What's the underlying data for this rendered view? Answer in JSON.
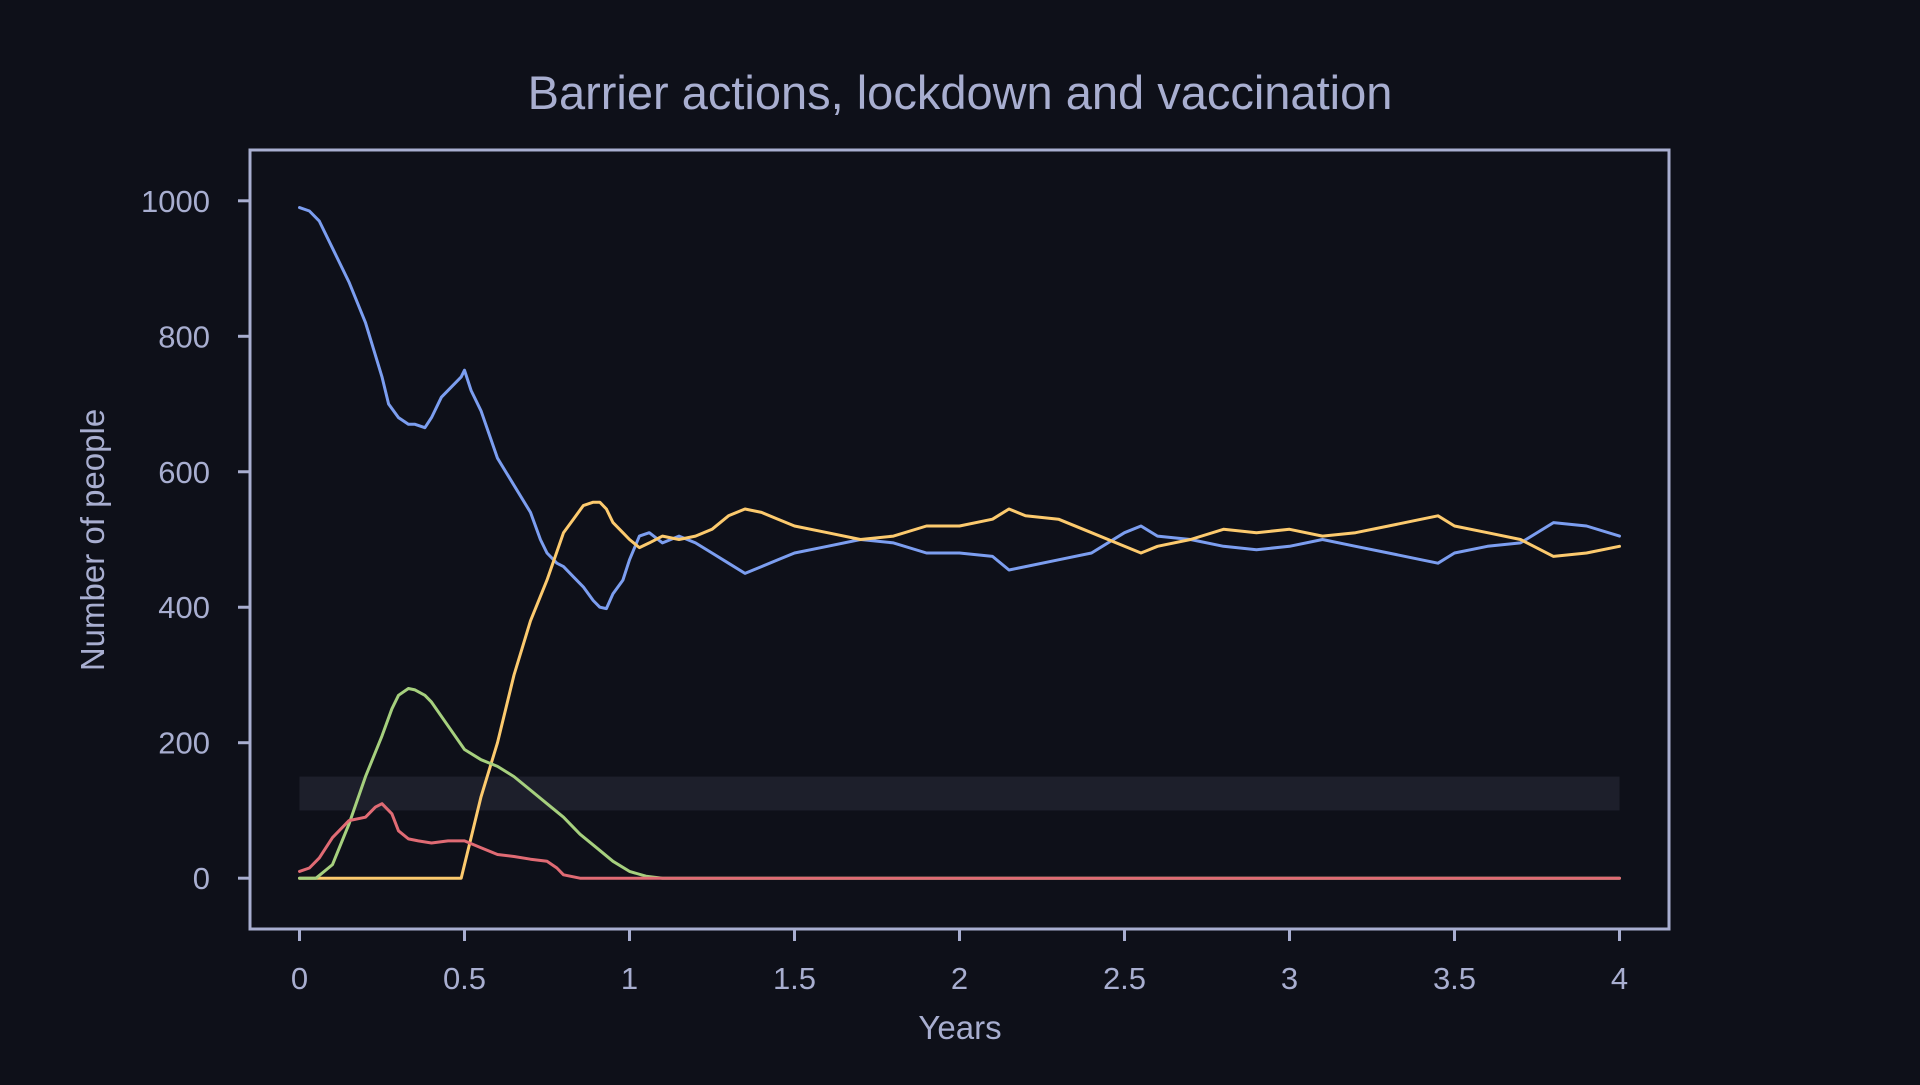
{
  "chart_data": {
    "type": "line",
    "title": "Barrier actions, lockdown and vaccination",
    "xlabel": "Years",
    "ylabel": "Number of people",
    "xlim": [
      -0.15,
      4.15
    ],
    "ylim": [
      -75,
      1075
    ],
    "x_ticks": [
      0,
      0.5,
      1,
      1.5,
      2,
      2.5,
      3,
      3.5,
      4
    ],
    "x_tick_labels": [
      "0",
      "0.5",
      "1",
      "1.5",
      "2",
      "2.5",
      "3",
      "3.5",
      "4"
    ],
    "y_ticks": [
      0,
      200,
      400,
      600,
      800,
      1000
    ],
    "y_tick_labels": [
      "0",
      "200",
      "400",
      "600",
      "800",
      "1000"
    ],
    "grid": false,
    "legend": "none",
    "colors": {
      "background": "#0e1019",
      "axes": "#a8aed0",
      "legend_box": "#1d1f2b"
    },
    "series": [
      {
        "color": "#7c9ef0",
        "x": [
          0,
          0.03,
          0.06,
          0.1,
          0.15,
          0.2,
          0.25,
          0.27,
          0.3,
          0.33,
          0.35,
          0.38,
          0.4,
          0.43,
          0.46,
          0.49,
          0.5,
          0.52,
          0.55,
          0.6,
          0.65,
          0.7,
          0.73,
          0.75,
          0.78,
          0.8,
          0.83,
          0.86,
          0.89,
          0.91,
          0.93,
          0.95,
          0.98,
          1.0,
          1.03,
          1.06,
          1.1,
          1.15,
          1.2,
          1.25,
          1.3,
          1.35,
          1.4,
          1.45,
          1.5,
          1.6,
          1.7,
          1.8,
          1.9,
          2.0,
          2.1,
          2.15,
          2.2,
          2.3,
          2.4,
          2.5,
          2.55,
          2.6,
          2.7,
          2.8,
          2.9,
          3.0,
          3.1,
          3.2,
          3.3,
          3.4,
          3.45,
          3.5,
          3.6,
          3.7,
          3.8,
          3.9,
          4.0
        ],
        "y": [
          990,
          985,
          970,
          930,
          880,
          820,
          740,
          700,
          680,
          670,
          670,
          665,
          680,
          710,
          725,
          740,
          750,
          720,
          690,
          620,
          580,
          540,
          500,
          480,
          465,
          460,
          445,
          430,
          410,
          400,
          398,
          420,
          440,
          470,
          505,
          510,
          495,
          505,
          495,
          480,
          465,
          450,
          460,
          470,
          480,
          490,
          500,
          495,
          480,
          480,
          475,
          455,
          460,
          470,
          480,
          510,
          520,
          505,
          500,
          490,
          485,
          490,
          500,
          490,
          480,
          470,
          465,
          480,
          490,
          495,
          525,
          520,
          505
        ]
      },
      {
        "color": "#fcca6e",
        "x": [
          0,
          0.1,
          0.2,
          0.3,
          0.4,
          0.49,
          0.5,
          0.52,
          0.55,
          0.6,
          0.65,
          0.7,
          0.75,
          0.8,
          0.83,
          0.86,
          0.89,
          0.91,
          0.93,
          0.95,
          0.98,
          1.0,
          1.03,
          1.06,
          1.1,
          1.15,
          1.2,
          1.25,
          1.3,
          1.35,
          1.4,
          1.45,
          1.5,
          1.6,
          1.7,
          1.8,
          1.9,
          2.0,
          2.1,
          2.15,
          2.2,
          2.3,
          2.4,
          2.5,
          2.55,
          2.6,
          2.7,
          2.8,
          2.9,
          3.0,
          3.1,
          3.2,
          3.3,
          3.4,
          3.45,
          3.5,
          3.6,
          3.7,
          3.8,
          3.9,
          4.0
        ],
        "y": [
          0,
          0,
          0,
          0,
          0,
          0,
          20,
          60,
          120,
          200,
          300,
          380,
          440,
          510,
          530,
          550,
          555,
          555,
          545,
          525,
          510,
          500,
          488,
          495,
          505,
          500,
          505,
          515,
          535,
          545,
          540,
          530,
          520,
          510,
          500,
          505,
          520,
          520,
          530,
          545,
          535,
          530,
          510,
          490,
          480,
          490,
          500,
          515,
          510,
          515,
          505,
          510,
          520,
          530,
          535,
          520,
          510,
          500,
          475,
          480,
          490
        ]
      },
      {
        "color": "#a6d07e",
        "x": [
          0,
          0.05,
          0.1,
          0.15,
          0.2,
          0.25,
          0.28,
          0.3,
          0.33,
          0.35,
          0.38,
          0.4,
          0.45,
          0.5,
          0.55,
          0.6,
          0.65,
          0.7,
          0.75,
          0.8,
          0.85,
          0.9,
          0.95,
          1.0,
          1.05,
          1.1,
          1.2,
          1.5,
          2.0,
          2.5,
          3.0,
          3.5,
          4.0
        ],
        "y": [
          0,
          0,
          20,
          80,
          150,
          210,
          250,
          270,
          280,
          278,
          270,
          260,
          225,
          190,
          175,
          165,
          150,
          130,
          110,
          90,
          65,
          45,
          25,
          10,
          3,
          0,
          0,
          0,
          0,
          0,
          0,
          0,
          0
        ]
      },
      {
        "color": "#e06b74",
        "x": [
          0,
          0.03,
          0.06,
          0.1,
          0.15,
          0.2,
          0.23,
          0.25,
          0.28,
          0.3,
          0.33,
          0.36,
          0.4,
          0.45,
          0.5,
          0.55,
          0.6,
          0.65,
          0.7,
          0.75,
          0.78,
          0.8,
          0.85,
          1.0,
          1.5,
          2.0,
          2.5,
          3.0,
          3.5,
          4.0
        ],
        "y": [
          10,
          15,
          30,
          60,
          85,
          90,
          105,
          110,
          95,
          70,
          58,
          55,
          52,
          55,
          55,
          45,
          35,
          32,
          28,
          25,
          15,
          5,
          0,
          0,
          0,
          0,
          0,
          0,
          0,
          0
        ]
      }
    ],
    "legend_box": {
      "x": [
        0,
        4
      ],
      "y": [
        100,
        150
      ]
    }
  }
}
